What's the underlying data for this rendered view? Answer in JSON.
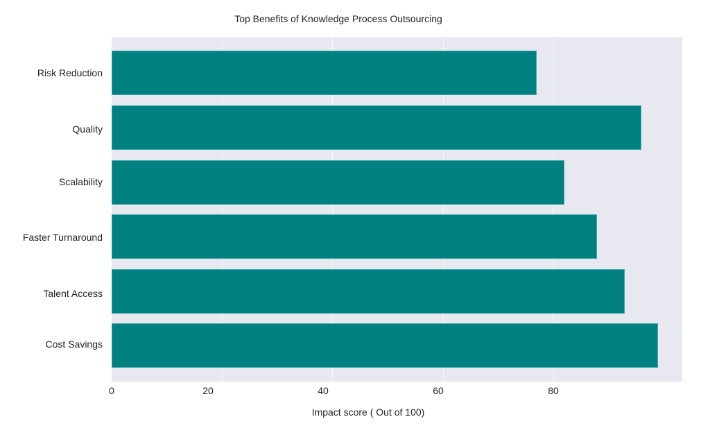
{
  "chart_data": {
    "type": "bar",
    "orientation": "horizontal",
    "title": "Top Benefits of Knowledge Process Outsourcing",
    "xlabel": "Impact score ( Out of 100)",
    "ylabel": "",
    "categories": [
      "Risk Reduction",
      "Quality",
      "Scalability",
      "Faster Turnaround",
      "Talent Access",
      "Cost Savings"
    ],
    "values": [
      77,
      96,
      82,
      88,
      93,
      99
    ],
    "xlim": [
      0,
      103.4
    ],
    "xticks": [
      0,
      20,
      40,
      60,
      80
    ],
    "grid": true,
    "legend": null,
    "colors": {
      "bar": "#008080",
      "plot_background": "#e8e8f1",
      "gridline": "#f6f6fa"
    }
  },
  "labels": {
    "title": "Top Benefits of Knowledge Process Outsourcing",
    "xlabel": "Impact score ( Out of 100)",
    "categories": [
      "Risk Reduction",
      "Quality",
      "Scalability",
      "Faster Turnaround",
      "Talent Access",
      "Cost Savings"
    ],
    "xticks": [
      "0",
      "20",
      "40",
      "60",
      "80"
    ]
  }
}
